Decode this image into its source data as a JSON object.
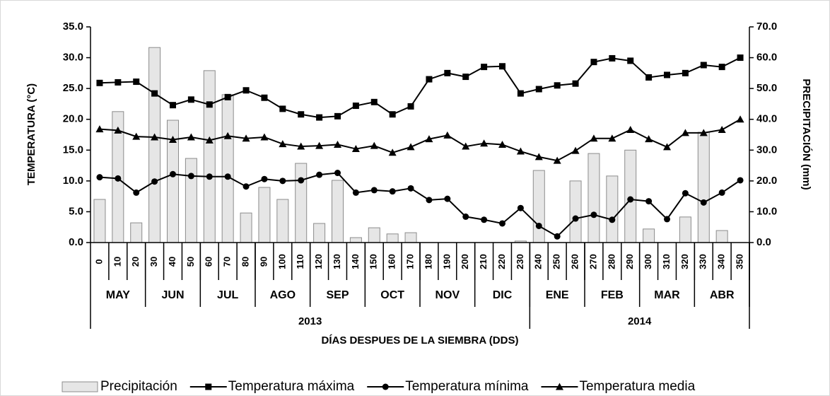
{
  "chart_data": {
    "type": "combo",
    "y_label": "TEMPERATURA (°C)",
    "y2_label": "PRECIPITACIÓN (mm)",
    "x_label": "DÍAS DESPUES DE LA SIEMBRA (DDS)",
    "categories": [
      "0",
      "10",
      "20",
      "30",
      "40",
      "50",
      "60",
      "70",
      "80",
      "90",
      "100",
      "110",
      "120",
      "130",
      "140",
      "150",
      "160",
      "170",
      "180",
      "190",
      "200",
      "210",
      "220",
      "230",
      "240",
      "250",
      "260",
      "270",
      "280",
      "290",
      "300",
      "310",
      "320",
      "330",
      "340",
      "350"
    ],
    "months": [
      {
        "label": "MAY",
        "from": "0",
        "to": "20"
      },
      {
        "label": "JUN",
        "from": "30",
        "to": "50"
      },
      {
        "label": "JUL",
        "from": "60",
        "to": "80"
      },
      {
        "label": "AGO",
        "from": "90",
        "to": "110"
      },
      {
        "label": "SEP",
        "from": "120",
        "to": "140"
      },
      {
        "label": "OCT",
        "from": "150",
        "to": "170"
      },
      {
        "label": "NOV",
        "from": "180",
        "to": "200"
      },
      {
        "label": "DIC",
        "from": "210",
        "to": "230"
      },
      {
        "label": "ENE",
        "from": "240",
        "to": "260"
      },
      {
        "label": "FEB",
        "from": "270",
        "to": "290"
      },
      {
        "label": "MAR",
        "from": "300",
        "to": "320"
      },
      {
        "label": "ABR",
        "from": "330",
        "to": "350"
      }
    ],
    "years": [
      {
        "label": "2013",
        "from": "0",
        "to": "230"
      },
      {
        "label": "2014",
        "from": "240",
        "to": "350"
      }
    ],
    "ylim": [
      0,
      35
    ],
    "yticks": [
      {
        "value": 0,
        "label": "0.0"
      },
      {
        "value": 5,
        "label": "5.0"
      },
      {
        "value": 10,
        "label": "10.0"
      },
      {
        "value": 15,
        "label": "15.0"
      },
      {
        "value": 20,
        "label": "20.0"
      },
      {
        "value": 25,
        "label": "25.0"
      },
      {
        "value": 30,
        "label": "30.0"
      },
      {
        "value": 35,
        "label": "35.0"
      }
    ],
    "y2lim": [
      0,
      70
    ],
    "y2ticks": [
      {
        "value": 0,
        "label": "0.0"
      },
      {
        "value": 10,
        "label": "10.0"
      },
      {
        "value": 20,
        "label": "20.0"
      },
      {
        "value": 30,
        "label": "30.0"
      },
      {
        "value": 40,
        "label": "40.0"
      },
      {
        "value": 50,
        "label": "50.0"
      },
      {
        "value": 60,
        "label": "60.0"
      },
      {
        "value": 70,
        "label": "70.0"
      }
    ],
    "grid": false,
    "series": [
      {
        "name": "Precipitación",
        "type": "bar",
        "axis": "y2",
        "color": "#e6e6e6",
        "values": [
          14,
          42.5,
          6.4,
          63.3,
          39.7,
          27.3,
          55.8,
          48,
          9.6,
          17.9,
          14,
          25.7,
          6.2,
          20.2,
          1.6,
          4.8,
          2.8,
          3.2,
          0,
          0,
          0,
          0,
          0,
          0.5,
          23.4,
          0,
          20,
          28.9,
          21.6,
          30,
          4.4,
          0,
          8.3,
          35.8,
          3.9,
          0
        ]
      },
      {
        "name": "Temperatura máxima",
        "type": "line",
        "marker": "square",
        "color": "#000000",
        "values": [
          25.9,
          26,
          26.1,
          24.2,
          22.3,
          23.2,
          22.4,
          23.6,
          24.7,
          23.5,
          21.7,
          20.8,
          20.3,
          20.5,
          22.2,
          22.8,
          20.8,
          22.1,
          26.5,
          27.5,
          26.9,
          28.5,
          28.6,
          24.2,
          24.9,
          25.5,
          25.8,
          29.3,
          29.9,
          29.5,
          26.8,
          27.2,
          27.5,
          28.8,
          28.5,
          30
        ]
      },
      {
        "name": "Temperatura mínima",
        "type": "line",
        "marker": "circle",
        "color": "#000000",
        "values": [
          10.6,
          10.4,
          8.1,
          9.9,
          11.1,
          10.8,
          10.7,
          10.7,
          9.1,
          10.3,
          10,
          10.1,
          11,
          11.3,
          8.1,
          8.5,
          8.3,
          8.8,
          6.9,
          7.1,
          4.2,
          3.7,
          3.1,
          5.6,
          2.7,
          1,
          3.9,
          4.5,
          3.7,
          7,
          6.7,
          3.8,
          8,
          6.5,
          8.1,
          10.1
        ]
      },
      {
        "name": "Temperatura media",
        "type": "line",
        "marker": "triangle",
        "color": "#000000",
        "values": [
          18.4,
          18.2,
          17.2,
          17.1,
          16.7,
          17.1,
          16.6,
          17.3,
          16.9,
          17.1,
          16,
          15.6,
          15.7,
          15.9,
          15.2,
          15.7,
          14.6,
          15.5,
          16.8,
          17.4,
          15.6,
          16.1,
          15.9,
          14.8,
          13.9,
          13.3,
          14.9,
          16.9,
          16.9,
          18.3,
          16.8,
          15.5,
          17.8,
          17.8,
          18.3,
          20
        ]
      }
    ]
  }
}
